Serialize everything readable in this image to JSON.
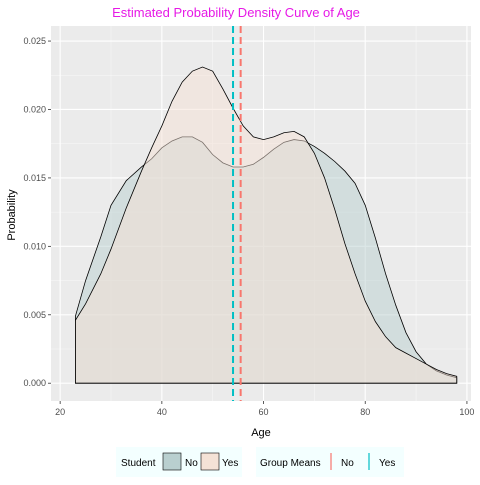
{
  "chart_data": {
    "type": "area",
    "title": "Estimated Probability Density Curve of Age",
    "title_color": "#e619e6",
    "xlabel": "Age",
    "ylabel": "Probability",
    "xlim": [
      18.2,
      100.8
    ],
    "ylim": [
      -0.0013,
      0.0261
    ],
    "x_ticks": [
      20,
      40,
      60,
      80,
      100
    ],
    "y_ticks": [
      0.0,
      0.005,
      0.01,
      0.015,
      0.02,
      0.025
    ],
    "x_tick_labels": [
      "20",
      "40",
      "60",
      "80",
      "100"
    ],
    "y_tick_labels": [
      "0.000",
      "0.005",
      "0.010",
      "0.015",
      "0.020",
      "0.025"
    ],
    "grid": true,
    "series": [
      {
        "name": "No",
        "fill": "#b9cfcf",
        "x": [
          23,
          25,
          28,
          30,
          33,
          36,
          38,
          40,
          42,
          44,
          46,
          48,
          50,
          52,
          54,
          56,
          58,
          60,
          62,
          64,
          66,
          68,
          70,
          72,
          74,
          76,
          78,
          80,
          82,
          84,
          86,
          88,
          90,
          92,
          94,
          96,
          98
        ],
        "values": [
          0.0049,
          0.0075,
          0.0107,
          0.013,
          0.0148,
          0.0158,
          0.0164,
          0.0172,
          0.0177,
          0.018,
          0.018,
          0.0176,
          0.0167,
          0.0161,
          0.0158,
          0.0158,
          0.016,
          0.0165,
          0.0171,
          0.0176,
          0.0178,
          0.0177,
          0.0173,
          0.0168,
          0.0162,
          0.0155,
          0.0146,
          0.013,
          0.0106,
          0.008,
          0.0057,
          0.0037,
          0.0023,
          0.0014,
          0.0009,
          0.0006,
          0.0004
        ]
      },
      {
        "name": "Yes",
        "fill": "#f5e2d6",
        "x": [
          23,
          25,
          28,
          30,
          33,
          36,
          38,
          40,
          42,
          44,
          46,
          48,
          50,
          52,
          54,
          56,
          58,
          60,
          62,
          64,
          66,
          68,
          70,
          72,
          74,
          76,
          78,
          80,
          82,
          84,
          86,
          88,
          90,
          92,
          94,
          96,
          98
        ],
        "values": [
          0.0046,
          0.0058,
          0.008,
          0.0098,
          0.0128,
          0.0155,
          0.0172,
          0.0188,
          0.0206,
          0.022,
          0.0228,
          0.0231,
          0.0228,
          0.0215,
          0.0201,
          0.0188,
          0.018,
          0.0178,
          0.018,
          0.0183,
          0.0184,
          0.018,
          0.0168,
          0.015,
          0.0127,
          0.0102,
          0.008,
          0.006,
          0.0045,
          0.0034,
          0.0026,
          0.0022,
          0.0018,
          0.0014,
          0.001,
          0.0007,
          0.0005
        ]
      }
    ],
    "group_means": [
      {
        "name": "No",
        "value": 55.5,
        "color": "#f8766d"
      },
      {
        "name": "Yes",
        "value": 54.0,
        "color": "#00bfc4"
      }
    ],
    "legend": {
      "position": "bottom",
      "fill_title": "Student",
      "fill_items": [
        "No",
        "Yes"
      ],
      "line_title": "Group Means",
      "line_items": [
        "No",
        "Yes"
      ]
    }
  }
}
